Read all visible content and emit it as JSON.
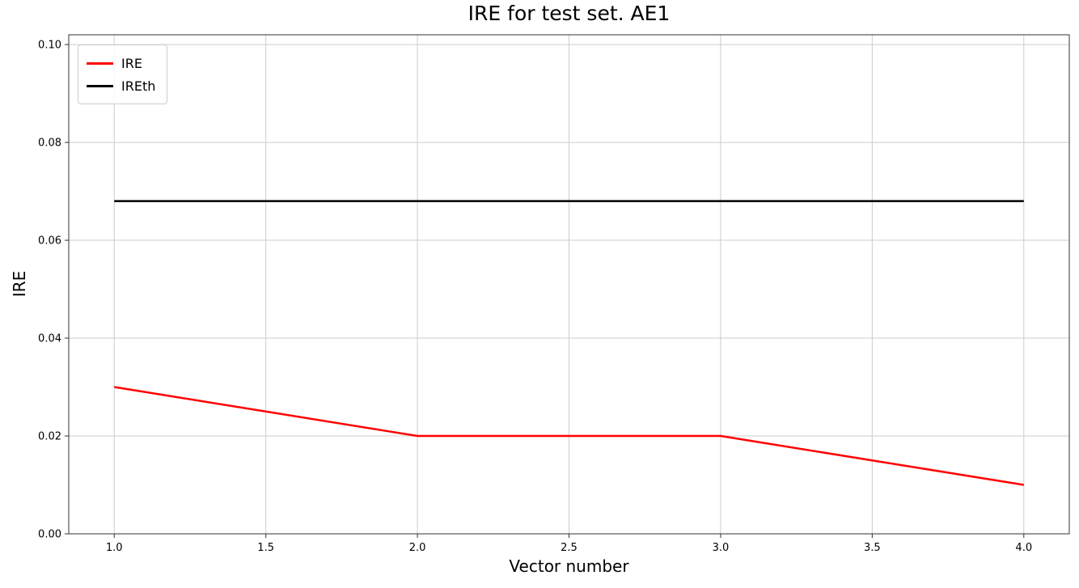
{
  "chart_data": {
    "type": "line",
    "title": "IRE for test set. AE1",
    "xlabel": "Vector number",
    "ylabel": "IRE",
    "x": [
      1.0,
      2.0,
      3.0,
      4.0
    ],
    "series": [
      {
        "name": "IRE",
        "color": "#ff0000",
        "values": [
          0.03,
          0.02,
          0.02,
          0.01
        ]
      },
      {
        "name": "IREth",
        "color": "#000000",
        "values": [
          0.068,
          0.068,
          0.068,
          0.068
        ]
      }
    ],
    "xlim": [
      0.85,
      4.15
    ],
    "ylim": [
      0.0,
      0.102
    ],
    "xticks": [
      1.0,
      1.5,
      2.0,
      2.5,
      3.0,
      3.5,
      4.0
    ],
    "yticks": [
      0.0,
      0.02,
      0.04,
      0.06,
      0.08,
      0.1
    ],
    "grid": true,
    "grid_color": "#cccccc",
    "spine_color": "#333333",
    "legend_position": "upper-left"
  }
}
